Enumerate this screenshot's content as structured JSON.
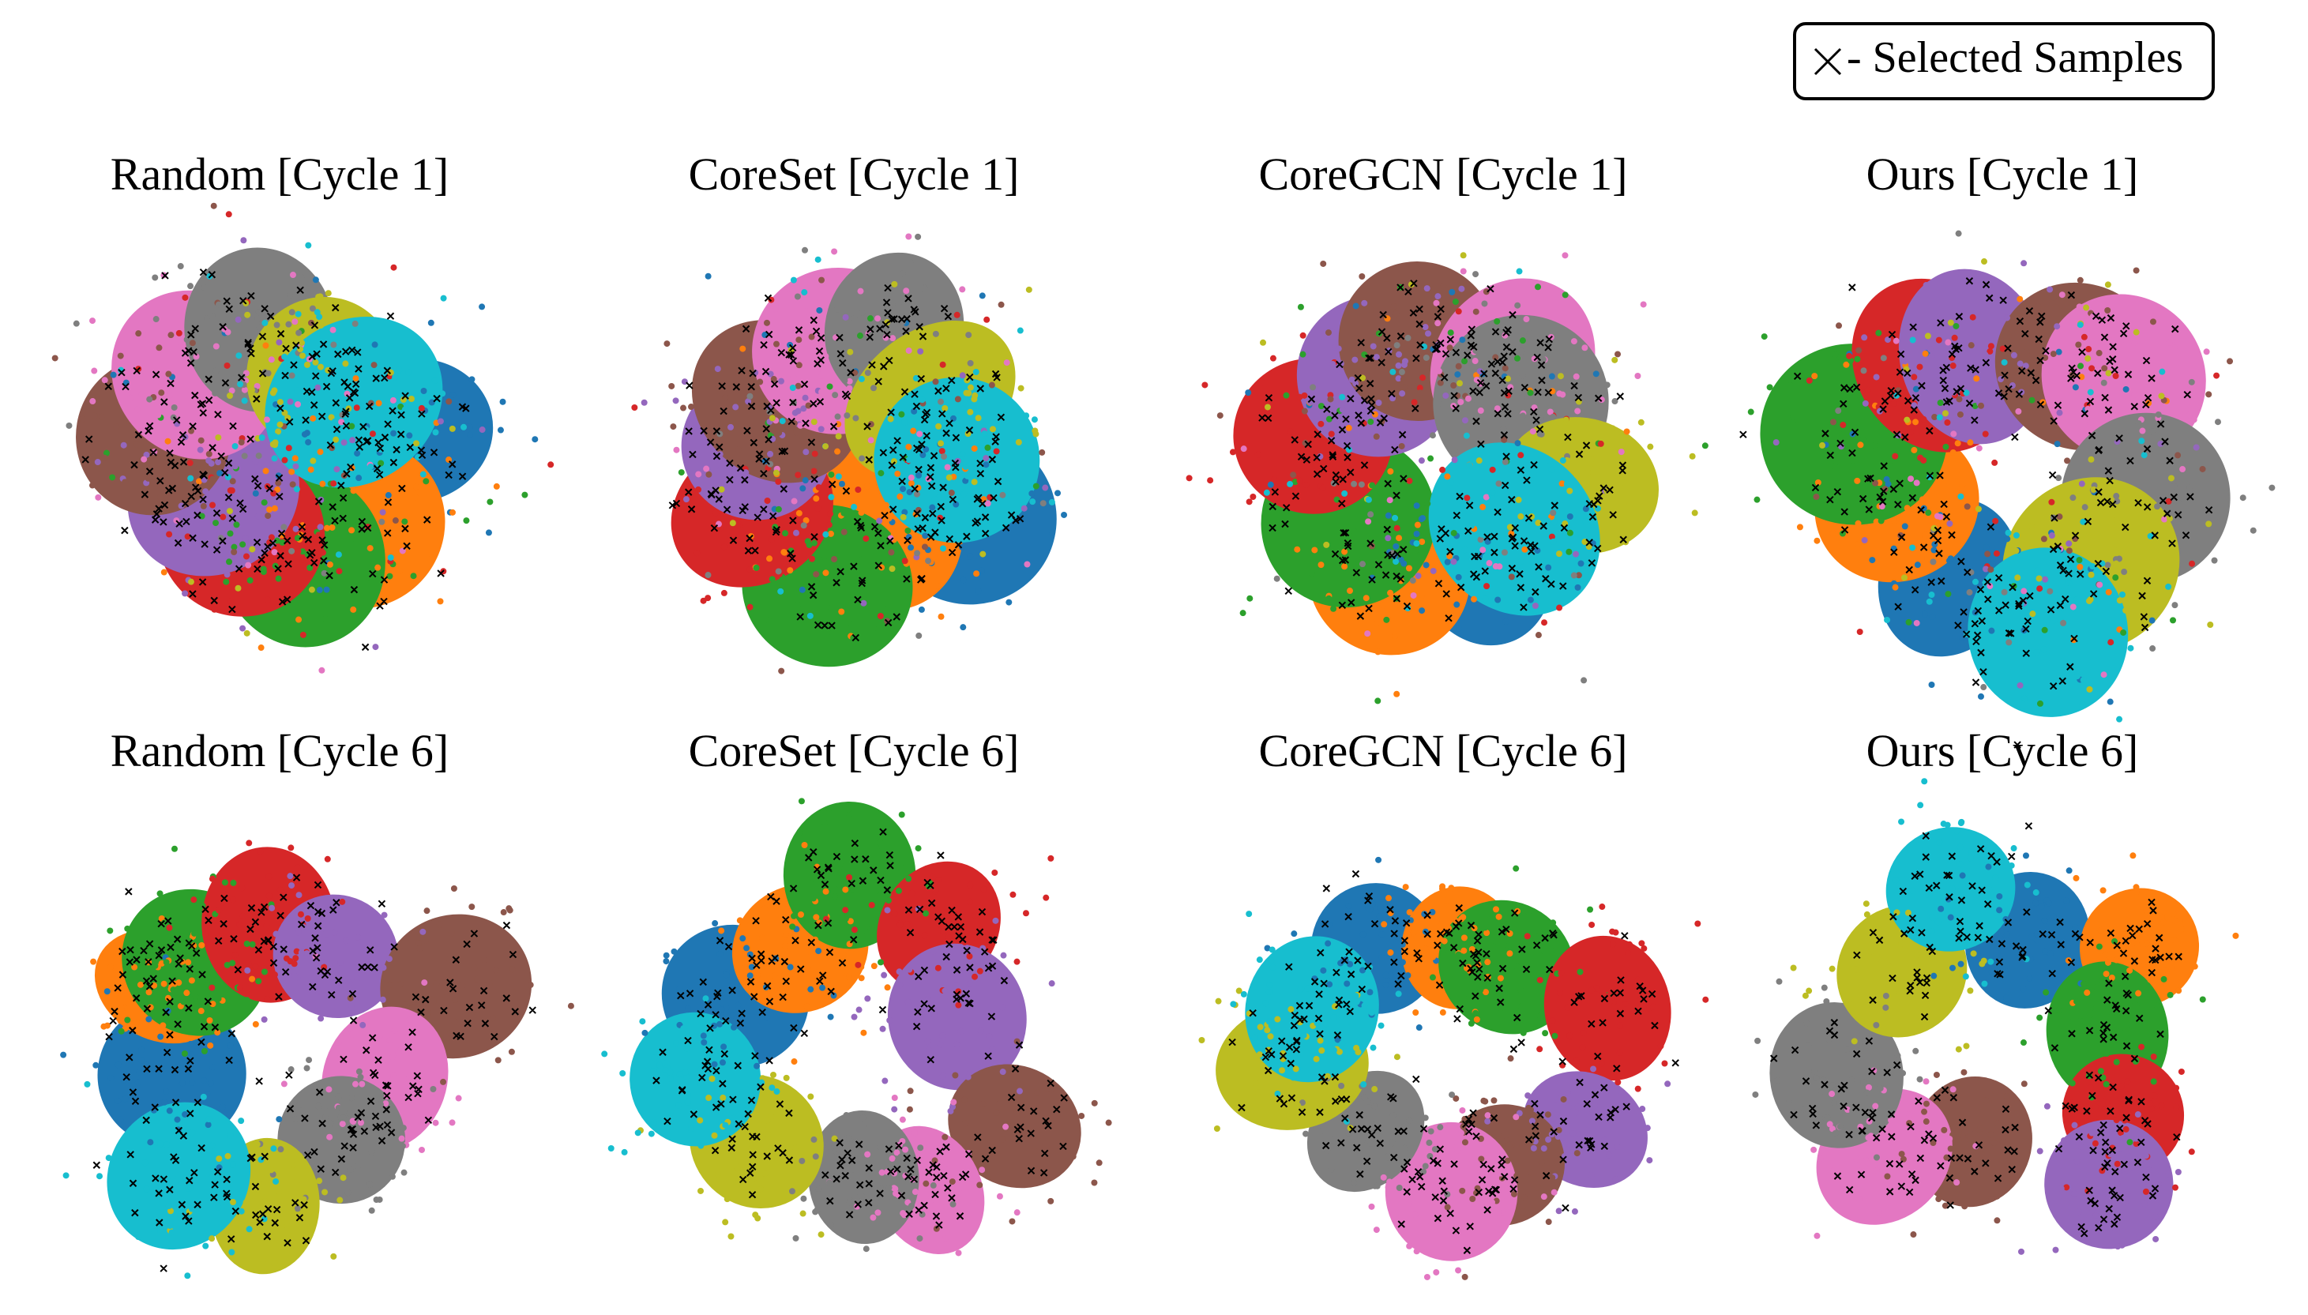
{
  "legend": {
    "label": "- Selected Samples"
  },
  "panels": [
    {
      "title": "Random [Cycle 1]"
    },
    {
      "title": "CoreSet [Cycle 1]"
    },
    {
      "title": "CoreGCN [Cycle 1]"
    },
    {
      "title": "Ours [Cycle 1]"
    },
    {
      "title": "Random [Cycle 6]"
    },
    {
      "title": "CoreSet [Cycle 6]"
    },
    {
      "title": "CoreGCN [Cycle 6]"
    },
    {
      "title": "Ours [Cycle 6]"
    }
  ]
}
